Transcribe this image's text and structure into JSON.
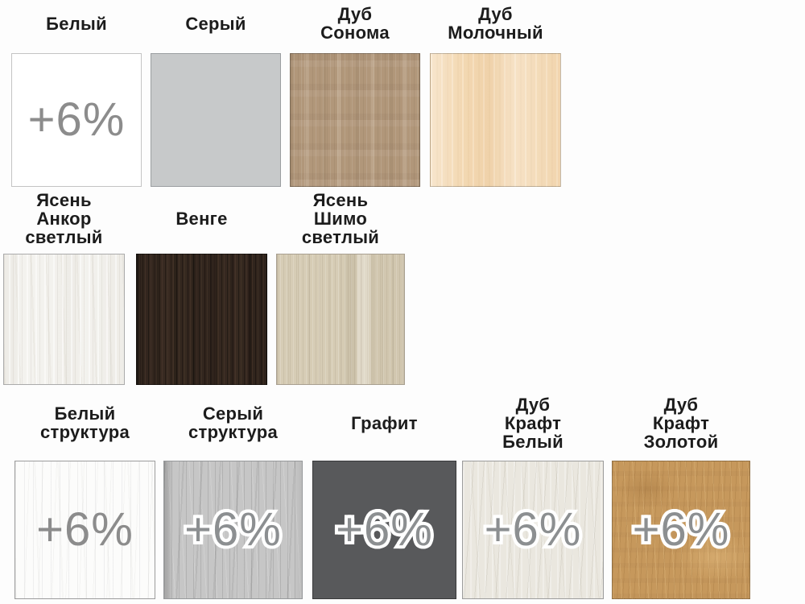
{
  "page": {
    "background": "#fdfdfd",
    "label_color": "#1c1c1c",
    "badge_color": "#8c8f91",
    "badge_outline_color": "#ffffff"
  },
  "badge": {
    "text": "+6%"
  },
  "rows": [
    {
      "items": [
        {
          "name": "Белый",
          "lines": [
            "Белый"
          ],
          "surcharge": true,
          "color": "#ffffff"
        },
        {
          "name": "Серый",
          "lines": [
            "Серый"
          ],
          "surcharge": false,
          "color": "#c7c9ca"
        },
        {
          "name": "Дуб Сонома",
          "lines": [
            "Дуб",
            "Сонома"
          ],
          "surcharge": false,
          "color": "#b1977a"
        },
        {
          "name": "Дуб Молочный",
          "lines": [
            "Дуб",
            "Молочный"
          ],
          "surcharge": false,
          "color": "#f3d8b2"
        }
      ]
    },
    {
      "items": [
        {
          "name": "Ясень Анкор светлый",
          "lines": [
            "Ясень",
            "Анкор",
            "светлый"
          ],
          "surcharge": false,
          "color": "#f3f2ee"
        },
        {
          "name": "Венге",
          "lines": [
            "Венге"
          ],
          "surcharge": false,
          "color": "#382a21"
        },
        {
          "name": "Ясень Шимо светлый",
          "lines": [
            "Ясень",
            "Шимо",
            "светлый"
          ],
          "surcharge": false,
          "color": "#d6ccb5"
        }
      ]
    },
    {
      "items": [
        {
          "name": "Белый структура",
          "lines": [
            "Белый",
            "структура"
          ],
          "surcharge": true,
          "color": "#fcfcfb"
        },
        {
          "name": "Серый структура",
          "lines": [
            "Серый",
            "структура"
          ],
          "surcharge": true,
          "color": "#c6c6c6"
        },
        {
          "name": "Графит",
          "lines": [
            "Графит"
          ],
          "surcharge": true,
          "color": "#58595b"
        },
        {
          "name": "Дуб Крафт Белый",
          "lines": [
            "Дуб",
            "Крафт",
            "Белый"
          ],
          "surcharge": true,
          "color": "#eae7df"
        },
        {
          "name": "Дуб Крафт Золотой",
          "lines": [
            "Дуб",
            "Крафт",
            "Золотой"
          ],
          "surcharge": true,
          "color": "#c6985c"
        }
      ]
    }
  ]
}
